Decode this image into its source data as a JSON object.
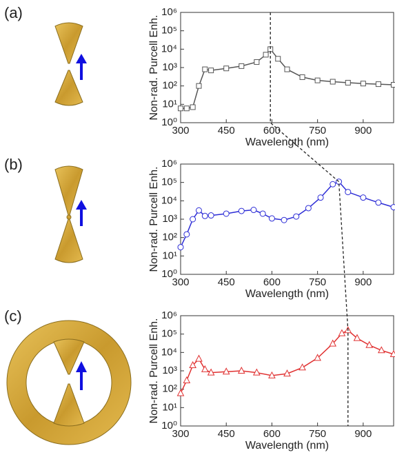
{
  "chart_data": [
    {
      "type": "line",
      "panel_label": "(a)",
      "xlabel": "Wavelength (nm)",
      "ylabel": "Non-rad. Purcell Enh.",
      "log_y": true,
      "xlim": [
        300,
        1000
      ],
      "xticks": [
        300,
        450,
        600,
        750,
        900
      ],
      "ylim": [
        1,
        1000000
      ],
      "yticks": [
        {
          "value": 1,
          "label": "10⁰"
        },
        {
          "value": 10,
          "label": "10¹"
        },
        {
          "value": 100,
          "label": "10²"
        },
        {
          "value": 1000,
          "label": "10³"
        },
        {
          "value": 10000,
          "label": "10⁴"
        },
        {
          "value": 100000,
          "label": "10⁵"
        },
        {
          "value": 1000000,
          "label": "10⁶"
        }
      ],
      "x": [
        300,
        320,
        340,
        360,
        380,
        400,
        450,
        500,
        550,
        580,
        595,
        620,
        650,
        700,
        750,
        800,
        850,
        900,
        950,
        1000
      ],
      "series": [
        {
          "color": "#555555",
          "marker": "square",
          "values": [
            6,
            6,
            7,
            100,
            800,
            700,
            900,
            1200,
            2000,
            5000,
            10000,
            3000,
            800,
            300,
            200,
            170,
            150,
            135,
            125,
            115
          ]
        }
      ]
    },
    {
      "type": "line",
      "panel_label": "(b)",
      "xlabel": "Wavelength (nm)",
      "ylabel": "Non-rad. Purcell Enh.",
      "log_y": true,
      "xlim": [
        300,
        1000
      ],
      "xticks": [
        300,
        450,
        600,
        750,
        900
      ],
      "ylim": [
        1,
        1000000
      ],
      "yticks": [
        {
          "value": 1,
          "label": "10⁰"
        },
        {
          "value": 10,
          "label": "10¹"
        },
        {
          "value": 100,
          "label": "10²"
        },
        {
          "value": 1000,
          "label": "10³"
        },
        {
          "value": 10000,
          "label": "10⁴"
        },
        {
          "value": 100000,
          "label": "10⁵"
        },
        {
          "value": 1000000,
          "label": "10⁶"
        }
      ],
      "x": [
        300,
        320,
        340,
        360,
        380,
        400,
        450,
        500,
        540,
        570,
        600,
        640,
        680,
        720,
        760,
        800,
        820,
        850,
        900,
        950,
        1000
      ],
      "series": [
        {
          "color": "#2b2bd6",
          "marker": "circle",
          "values": [
            30,
            150,
            1000,
            3000,
            1500,
            1600,
            2000,
            2800,
            3200,
            2000,
            1100,
            900,
            1400,
            4000,
            15000,
            80000,
            110000,
            30000,
            15000,
            8000,
            4500
          ]
        }
      ]
    },
    {
      "type": "line",
      "panel_label": "(c)",
      "xlabel": "Wavelength (nm)",
      "ylabel": "Non-rad. Purcell Enh.",
      "log_y": true,
      "xlim": [
        300,
        1000
      ],
      "xticks": [
        300,
        450,
        600,
        750,
        900
      ],
      "ylim": [
        1,
        1000000
      ],
      "yticks": [
        {
          "value": 1,
          "label": "10⁰"
        },
        {
          "value": 10,
          "label": "10¹"
        },
        {
          "value": 100,
          "label": "10²"
        },
        {
          "value": 1000,
          "label": "10³"
        },
        {
          "value": 10000,
          "label": "10⁴"
        },
        {
          "value": 100000,
          "label": "10⁵"
        },
        {
          "value": 1000000,
          "label": "10⁶"
        }
      ],
      "x": [
        300,
        320,
        340,
        360,
        380,
        400,
        450,
        500,
        550,
        600,
        650,
        700,
        750,
        800,
        830,
        850,
        880,
        920,
        960,
        1000
      ],
      "series": [
        {
          "color": "#e03030",
          "marker": "triangle",
          "values": [
            60,
            300,
            2000,
            4500,
            1200,
            800,
            900,
            1000,
            800,
            550,
            700,
            1500,
            5000,
            30000,
            110000,
            160000,
            60000,
            25000,
            13000,
            8000
          ]
        }
      ]
    }
  ]
}
